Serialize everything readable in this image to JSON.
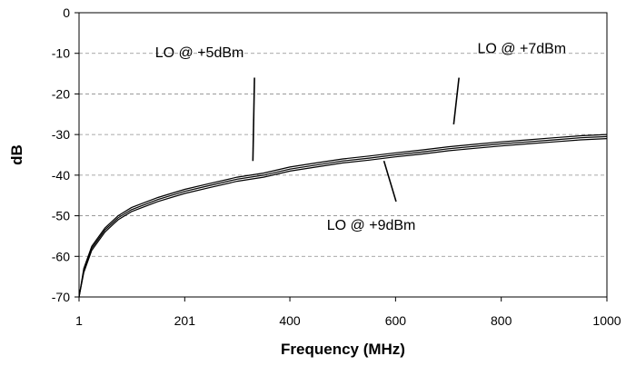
{
  "chart_data": {
    "type": "line",
    "title": "",
    "xlabel": "Frequency (MHz)",
    "ylabel": "dB",
    "xlim": [
      1,
      1000
    ],
    "ylim": [
      -70,
      0
    ],
    "x_ticks": [
      1,
      201,
      400,
      600,
      800,
      1000
    ],
    "y_ticks": [
      0,
      -10,
      -20,
      -30,
      -40,
      -50,
      -60,
      -70
    ],
    "grid": {
      "horizontal": true,
      "vertical": false,
      "style": "dashed"
    },
    "legend": "none",
    "series": [
      {
        "x": [
          1,
          10,
          25,
          50,
          75,
          100,
          150,
          201,
          250,
          300,
          350,
          400,
          450,
          500,
          550,
          600,
          650,
          700,
          750,
          800,
          850,
          900,
          950,
          1000
        ],
        "values": [
          -70,
          -63,
          -57.5,
          -53,
          -50,
          -48,
          -45.5,
          -43.5,
          -42,
          -40.5,
          -39.5,
          -38,
          -37,
          -36,
          -35.3,
          -34.5,
          -33.8,
          -33,
          -32.4,
          -31.8,
          -31.3,
          -30.8,
          -30.3,
          -30
        ]
      },
      {
        "x": [
          1,
          10,
          25,
          50,
          75,
          100,
          150,
          201,
          250,
          300,
          350,
          400,
          450,
          500,
          550,
          600,
          650,
          700,
          750,
          800,
          850,
          900,
          950,
          1000
        ],
        "values": [
          -70,
          -63.5,
          -58,
          -53.5,
          -50.5,
          -48.5,
          -46,
          -44,
          -42.5,
          -41,
          -40,
          -38.5,
          -37.5,
          -36.5,
          -35.8,
          -35,
          -34.3,
          -33.5,
          -32.9,
          -32.3,
          -31.8,
          -31.3,
          -30.8,
          -30.5
        ]
      },
      {
        "x": [
          1,
          10,
          25,
          50,
          75,
          100,
          150,
          201,
          250,
          300,
          350,
          400,
          450,
          500,
          550,
          600,
          650,
          700,
          750,
          800,
          850,
          900,
          950,
          1000
        ],
        "values": [
          -70,
          -64,
          -58.5,
          -54,
          -51,
          -49,
          -46.5,
          -44.5,
          -43,
          -41.5,
          -40.5,
          -39,
          -38,
          -37,
          -36.3,
          -35.5,
          -34.8,
          -34,
          -33.4,
          -32.8,
          -32.3,
          -31.8,
          -31.3,
          -31
        ]
      }
    ],
    "annotations": [
      {
        "text": "LO @ +5dBm",
        "label_at": [
          145,
          -11
        ],
        "pointer_from": [
          333,
          -16
        ],
        "pointer_to": [
          330,
          -36.5
        ]
      },
      {
        "text": "LO @ +7dBm",
        "label_at": [
          755,
          -10
        ],
        "pointer_from": [
          720,
          -16
        ],
        "pointer_to": [
          710,
          -27.5
        ]
      },
      {
        "text": "LO @ +9dBm",
        "label_at": [
          470,
          -53.5
        ],
        "pointer_from": [
          578,
          -36.5
        ],
        "pointer_to": [
          601,
          -46.5
        ]
      }
    ]
  }
}
